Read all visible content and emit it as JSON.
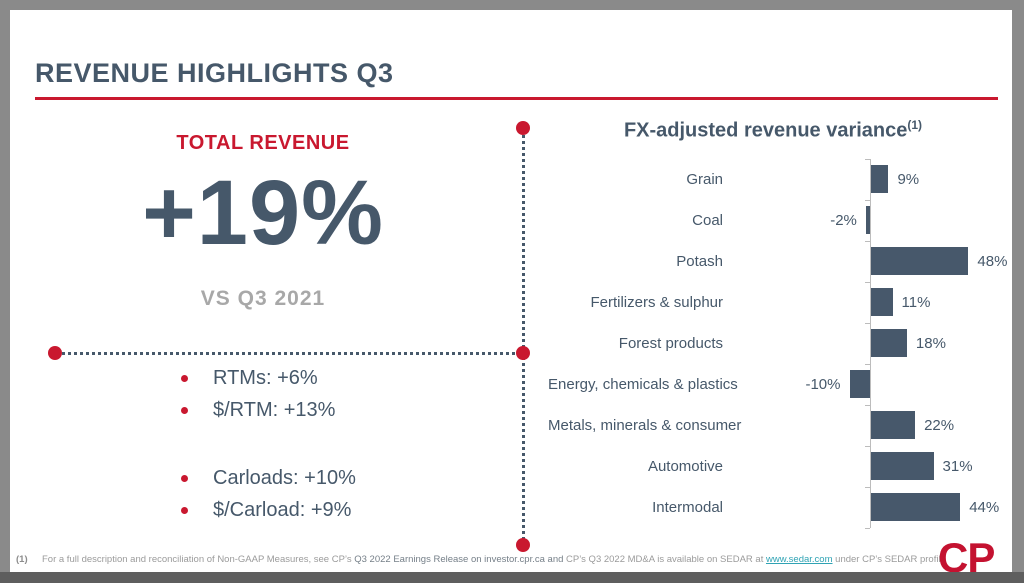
{
  "slide": {
    "title": "REVENUE HIGHLIGHTS Q3"
  },
  "left_panel": {
    "kpi_label": "TOTAL REVENUE",
    "kpi_value": "+19%",
    "kpi_compare": "VS Q3 2021",
    "bullets_group1": [
      "RTMs: +6%",
      "$/RTM: +13%"
    ],
    "bullets_group2": [
      "Carloads: +10%",
      "$/Carload: +9%"
    ]
  },
  "chart_data": {
    "type": "bar",
    "orientation": "horizontal",
    "title": "FX-adjusted revenue variance",
    "title_superscript": "(1)",
    "categories": [
      "Grain",
      "Coal",
      "Potash",
      "Fertilizers & sulphur",
      "Forest products",
      "Energy, chemicals & plastics",
      "Metals, minerals & consumer",
      "Automotive",
      "Intermodal"
    ],
    "values": [
      9,
      -2,
      48,
      11,
      18,
      -10,
      22,
      31,
      44
    ],
    "value_labels": [
      "9%",
      "-2%",
      "48%",
      "11%",
      "18%",
      "-10%",
      "22%",
      "31%",
      "44%"
    ],
    "xlim": [
      -15,
      55
    ],
    "grid": false,
    "legend": "none",
    "bar_color": "#47586B"
  },
  "footer": {
    "note_number": "(1)",
    "segments": [
      {
        "text": "For a full description and reconciliation of Non-GAAP Measures, see CP’s ",
        "style": "light"
      },
      {
        "text": "Q3 2022 Earnings Release on investor.cpr.ca and ",
        "style": "dark"
      },
      {
        "text": "CP’s Q3 2022 MD&A is available on SEDAR at ",
        "style": "light"
      },
      {
        "text": "www.sedar.com",
        "style": "link"
      },
      {
        "text": " under CP’s SEDAR profile",
        "style": "light"
      }
    ],
    "logo": "CP"
  },
  "colors": {
    "accent_red": "#C9182F",
    "slate": "#46586A",
    "bar": "#47586B",
    "muted_gray": "#A8A8A8",
    "link_teal": "#2FA3B4",
    "logo_red": "#C41230"
  }
}
